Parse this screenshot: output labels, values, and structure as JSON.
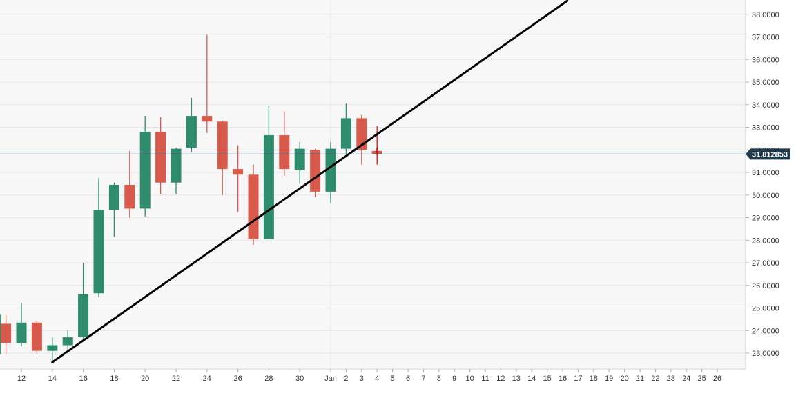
{
  "chart_data": {
    "type": "candlestick",
    "colors": {
      "up": "#2e8b6e",
      "down": "#d75a4a",
      "trendline": "#000000",
      "price_line": "#1f3a4d",
      "price_badge": "#1f3a4d",
      "grid": "#e6e6e6",
      "plot_bg": "#f7f7f7",
      "label": "#333333"
    },
    "y_axis": {
      "min": 22.5,
      "max": 38.5,
      "ticks": [
        "23.0000",
        "24.0000",
        "25.0000",
        "26.0000",
        "27.0000",
        "28.0000",
        "29.0000",
        "30.0000",
        "31.0000",
        "32.0000",
        "33.0000",
        "34.0000",
        "35.0000",
        "36.0000",
        "37.0000",
        "38.0000"
      ]
    },
    "x_axis": {
      "ticks": [
        {
          "day": 12,
          "label": "12"
        },
        {
          "day": 14,
          "label": "14"
        },
        {
          "day": 16,
          "label": "16"
        },
        {
          "day": 18,
          "label": "18"
        },
        {
          "day": 20,
          "label": "20"
        },
        {
          "day": 22,
          "label": "22"
        },
        {
          "day": 24,
          "label": "24"
        },
        {
          "day": 26,
          "label": "26"
        },
        {
          "day": 28,
          "label": "28"
        },
        {
          "day": 30,
          "label": "30"
        },
        {
          "day": 32,
          "label": "Jan"
        },
        {
          "day": 33,
          "label": "2"
        },
        {
          "day": 34,
          "label": "3"
        },
        {
          "day": 35,
          "label": "4"
        },
        {
          "day": 36,
          "label": "5"
        },
        {
          "day": 37,
          "label": "6"
        },
        {
          "day": 38,
          "label": "7"
        },
        {
          "day": 39,
          "label": "8"
        },
        {
          "day": 40,
          "label": "9"
        },
        {
          "day": 41,
          "label": "10"
        },
        {
          "day": 42,
          "label": "11"
        },
        {
          "day": 43,
          "label": "12"
        },
        {
          "day": 44,
          "label": "13"
        },
        {
          "day": 45,
          "label": "14"
        },
        {
          "day": 46,
          "label": "15"
        },
        {
          "day": 47,
          "label": "16"
        },
        {
          "day": 48,
          "label": "17"
        },
        {
          "day": 49,
          "label": "18"
        },
        {
          "day": 50,
          "label": "19"
        },
        {
          "day": 51,
          "label": "20"
        },
        {
          "day": 52,
          "label": "21"
        },
        {
          "day": 53,
          "label": "22"
        },
        {
          "day": 54,
          "label": "23"
        },
        {
          "day": 55,
          "label": "24"
        },
        {
          "day": 56,
          "label": "25"
        },
        {
          "day": 57,
          "label": "26"
        }
      ],
      "separator_day": 32,
      "range": [
        10.5,
        57.5
      ]
    },
    "candles": [
      {
        "day": 10.65,
        "open": 23.45,
        "high": 24.7,
        "low": 22.95,
        "close": 24.3
      },
      {
        "day": 11,
        "open": 24.3,
        "high": 24.7,
        "low": 22.95,
        "close": 23.45
      },
      {
        "day": 12,
        "open": 23.45,
        "high": 25.2,
        "low": 23.3,
        "close": 24.35
      },
      {
        "day": 13,
        "open": 24.35,
        "high": 24.45,
        "low": 22.95,
        "close": 23.1
      },
      {
        "day": 14,
        "open": 23.1,
        "high": 23.7,
        "low": 22.6,
        "close": 23.35
      },
      {
        "day": 15,
        "open": 23.35,
        "high": 24.0,
        "low": 23.1,
        "close": 23.7
      },
      {
        "day": 16,
        "open": 23.7,
        "high": 27.0,
        "low": 23.65,
        "close": 25.6
      },
      {
        "day": 17,
        "open": 25.65,
        "high": 30.75,
        "low": 25.5,
        "close": 29.35
      },
      {
        "day": 18,
        "open": 29.35,
        "high": 30.55,
        "low": 28.15,
        "close": 30.45
      },
      {
        "day": 19,
        "open": 30.45,
        "high": 31.95,
        "low": 29.0,
        "close": 29.4
      },
      {
        "day": 20,
        "open": 29.4,
        "high": 33.5,
        "low": 29.05,
        "close": 32.8
      },
      {
        "day": 21,
        "open": 32.8,
        "high": 33.45,
        "low": 30.05,
        "close": 30.55
      },
      {
        "day": 22,
        "open": 30.55,
        "high": 32.1,
        "low": 30.05,
        "close": 32.05
      },
      {
        "day": 23,
        "open": 32.1,
        "high": 34.3,
        "low": 31.9,
        "close": 33.5
      },
      {
        "day": 24,
        "open": 33.5,
        "high": 37.1,
        "low": 32.75,
        "close": 33.25
      },
      {
        "day": 25,
        "open": 33.25,
        "high": 33.3,
        "low": 30.0,
        "close": 31.15
      },
      {
        "day": 26,
        "open": 31.15,
        "high": 32.2,
        "low": 29.25,
        "close": 30.9
      },
      {
        "day": 27,
        "open": 30.9,
        "high": 31.35,
        "low": 27.8,
        "close": 28.05
      },
      {
        "day": 28,
        "open": 28.05,
        "high": 33.95,
        "low": 28.05,
        "close": 32.65
      },
      {
        "day": 29,
        "open": 32.65,
        "high": 33.7,
        "low": 30.85,
        "close": 31.15
      },
      {
        "day": 30,
        "open": 31.1,
        "high": 32.35,
        "low": 30.5,
        "close": 32.05
      },
      {
        "day": 31,
        "open": 32.0,
        "high": 32.05,
        "low": 29.9,
        "close": 30.15
      },
      {
        "day": 32,
        "open": 30.15,
        "high": 32.35,
        "low": 29.65,
        "close": 32.05
      },
      {
        "day": 33,
        "open": 32.05,
        "high": 34.05,
        "low": 31.8,
        "close": 33.4
      },
      {
        "day": 34,
        "open": 33.4,
        "high": 33.55,
        "low": 31.35,
        "close": 32.0
      },
      {
        "day": 35,
        "open": 31.95,
        "high": 33.05,
        "low": 31.35,
        "close": 31.81,
        "highlight": "#ff0000"
      }
    ],
    "trendline": {
      "from": {
        "day": 14,
        "price": 22.6
      },
      "to": {
        "day": 47.3,
        "price": 38.6
      }
    },
    "current_price": 31.812853,
    "current_price_label": "31.812853"
  }
}
